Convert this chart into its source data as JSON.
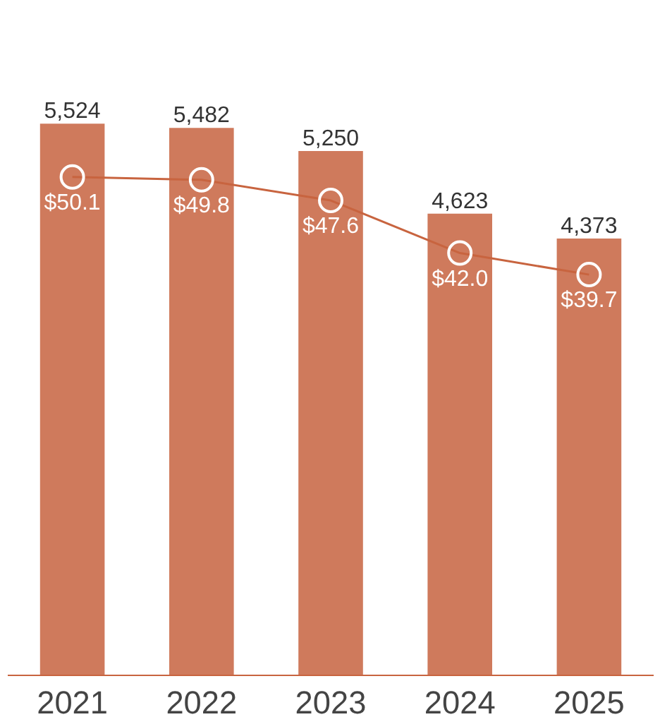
{
  "chart_data": {
    "type": "bar",
    "categories": [
      "2021",
      "2022",
      "2023",
      "2024",
      "2025"
    ],
    "tick_labels": "x",
    "grid": false,
    "series": [
      {
        "color": "#cf7a5c",
        "values": [
          5524,
          5482,
          5250,
          4623,
          4373
        ],
        "value_labels": [
          "5,524",
          "5,482",
          "5,250",
          "4,623",
          "4,373"
        ]
      },
      {
        "type": "line",
        "axis": "y2",
        "color": "#c8643f",
        "marker": "circle",
        "values": [
          50.1,
          49.8,
          47.6,
          42.0,
          39.7
        ],
        "value_labels": [
          "$50.1",
          "$49.8",
          "$47.6",
          "$42.0",
          "$39.7"
        ]
      }
    ]
  }
}
